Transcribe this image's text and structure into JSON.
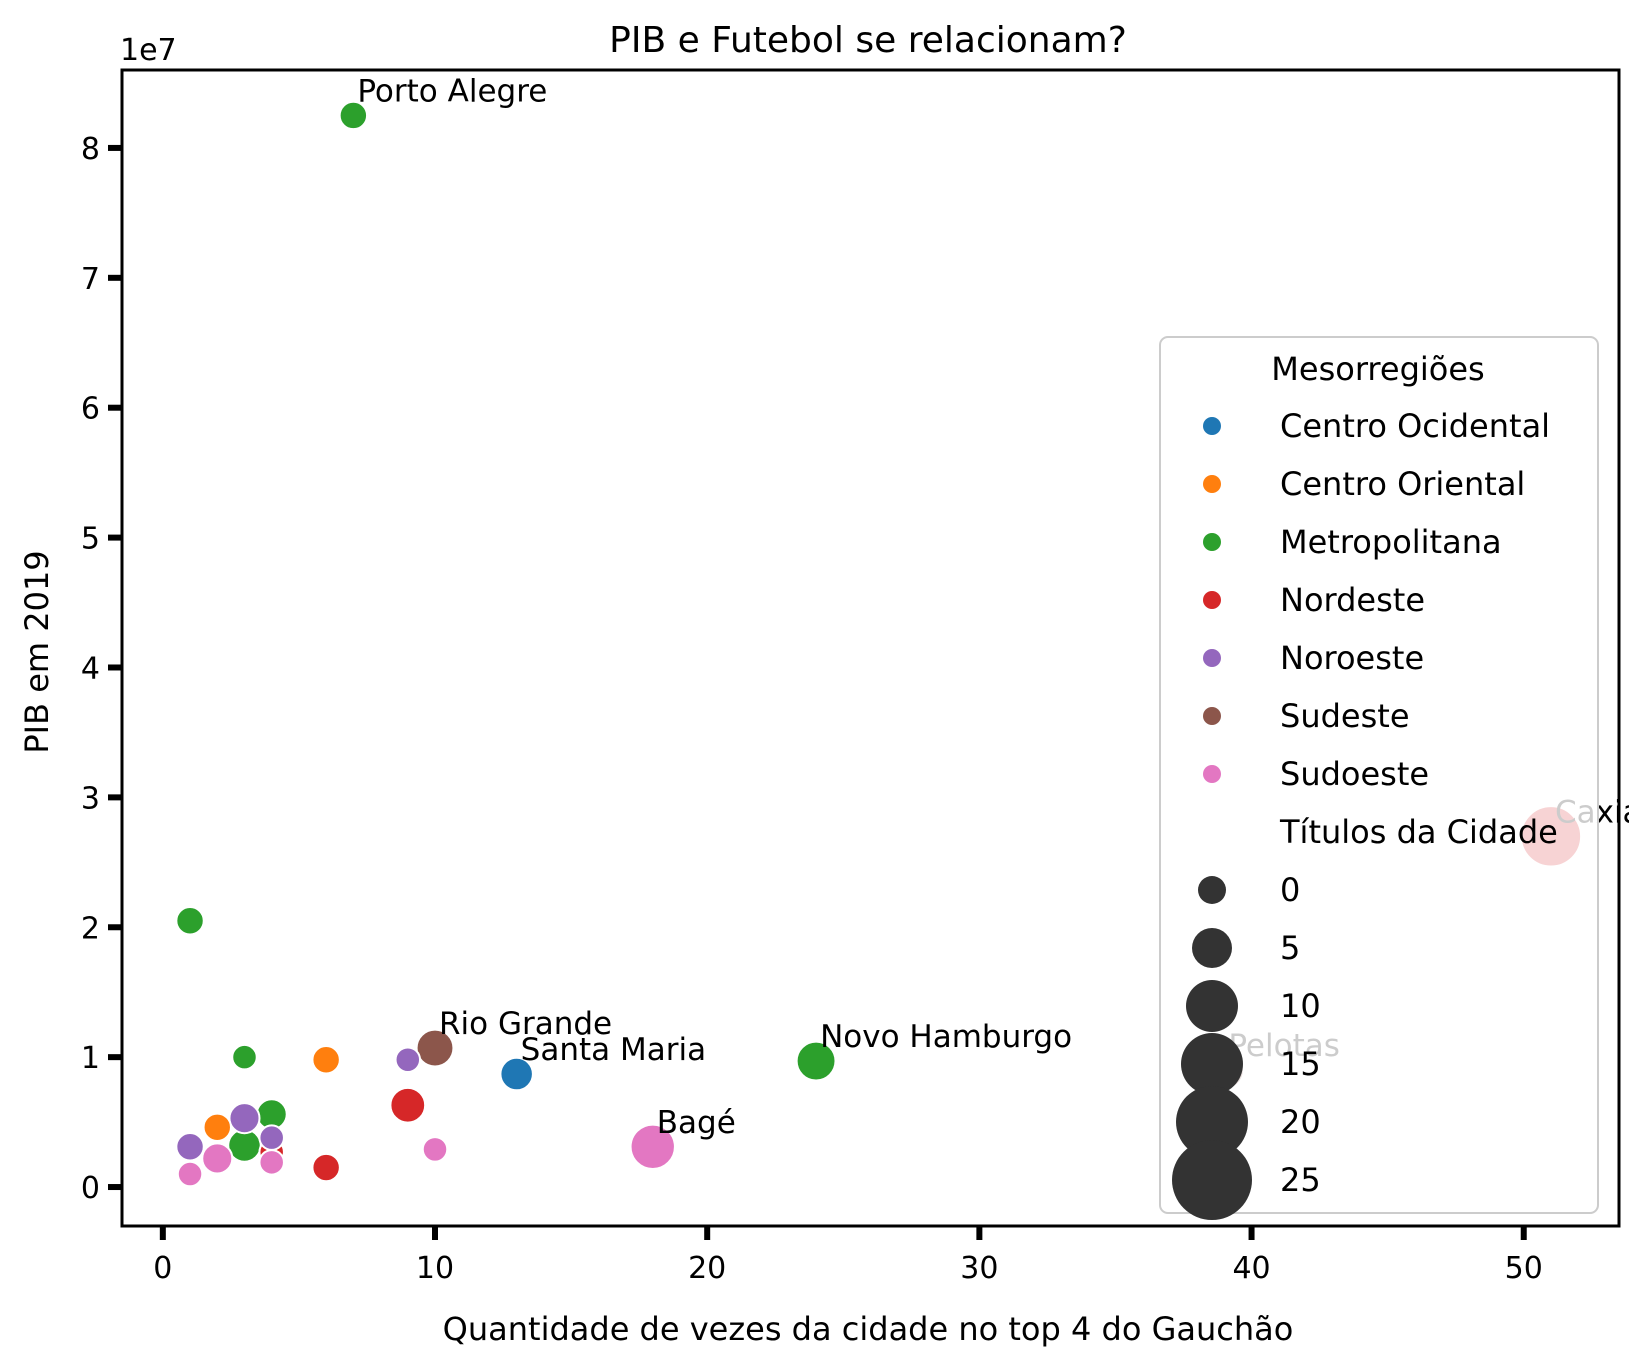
{
  "chart_data": {
    "type": "scatter",
    "title": "PIB e Futebol se relacionam?",
    "xlabel": "Quantidade de vezes da cidade no top 4 do Gauchão",
    "ylabel": "PIB em 2019",
    "y_offset_text": "1e7",
    "xlim": [
      -1.5,
      53.5
    ],
    "ylim": [
      -0.3,
      8.6
    ],
    "x_ticks": [
      "0",
      "10",
      "20",
      "30",
      "40",
      "50"
    ],
    "y_ticks": [
      "0",
      "1",
      "2",
      "3",
      "4",
      "5",
      "6",
      "7",
      "8"
    ],
    "grid": false,
    "legend": {
      "position": "right",
      "hue_title": "Mesorregiões",
      "size_title": "Títulos da Cidade",
      "hue_entries": [
        {
          "label": "Centro Ocidental",
          "color": "#1f77b4"
        },
        {
          "label": "Centro Oriental",
          "color": "#ff7f0e"
        },
        {
          "label": "Metropolitana",
          "color": "#2ca02c"
        },
        {
          "label": "Nordeste",
          "color": "#d62728"
        },
        {
          "label": "Noroeste",
          "color": "#9467bd"
        },
        {
          "label": "Sudeste",
          "color": "#8c564b"
        },
        {
          "label": "Sudoeste",
          "color": "#e377c2"
        }
      ],
      "size_entries": [
        "0",
        "5",
        "10",
        "15",
        "20",
        "25"
      ]
    },
    "points": [
      {
        "x": 7,
        "y": 8.25,
        "region": "Metropolitana",
        "titles": 1,
        "label": "Porto Alegre"
      },
      {
        "x": 1,
        "y": 2.05,
        "region": "Metropolitana",
        "titles": 1
      },
      {
        "x": 3,
        "y": 1.0,
        "region": "Metropolitana",
        "titles": 0
      },
      {
        "x": 4,
        "y": 0.56,
        "region": "Metropolitana",
        "titles": 2
      },
      {
        "x": 3,
        "y": 0.32,
        "region": "Metropolitana",
        "titles": 3
      },
      {
        "x": 24,
        "y": 0.97,
        "region": "Metropolitana",
        "titles": 6,
        "label": "Novo Hamburgo"
      },
      {
        "x": 6,
        "y": 0.98,
        "region": "Centro Oriental",
        "titles": 1
      },
      {
        "x": 2,
        "y": 0.46,
        "region": "Centro Oriental",
        "titles": 1
      },
      {
        "x": 9,
        "y": 0.63,
        "region": "Nordeste",
        "titles": 4
      },
      {
        "x": 6,
        "y": 0.15,
        "region": "Nordeste",
        "titles": 1
      },
      {
        "x": 4,
        "y": 0.27,
        "region": "Nordeste",
        "titles": 0
      },
      {
        "x": 51,
        "y": 2.7,
        "region": "Nordeste",
        "titles": 20,
        "label": "Caxias do Sul"
      },
      {
        "x": 9,
        "y": 0.98,
        "region": "Noroeste",
        "titles": 0
      },
      {
        "x": 3,
        "y": 0.53,
        "region": "Noroeste",
        "titles": 2
      },
      {
        "x": 1,
        "y": 0.31,
        "region": "Noroeste",
        "titles": 1
      },
      {
        "x": 4,
        "y": 0.38,
        "region": "Noroeste",
        "titles": 0
      },
      {
        "x": 10,
        "y": 1.07,
        "region": "Sudeste",
        "titles": 5,
        "label": "Rio Grande"
      },
      {
        "x": 39,
        "y": 0.9,
        "region": "Sudeste",
        "titles": 6,
        "label": "Pelotas"
      },
      {
        "x": 13,
        "y": 0.87,
        "region": "Centro Ocidental",
        "titles": 3,
        "label": "Santa Maria"
      },
      {
        "x": 18,
        "y": 0.31,
        "region": "Sudoeste",
        "titles": 9,
        "label": "Bagé"
      },
      {
        "x": 10,
        "y": 0.29,
        "region": "Sudoeste",
        "titles": 0
      },
      {
        "x": 2,
        "y": 0.22,
        "region": "Sudoeste",
        "titles": 2
      },
      {
        "x": 4,
        "y": 0.19,
        "region": "Sudoeste",
        "titles": 0
      },
      {
        "x": 1,
        "y": 0.1,
        "region": "Sudoeste",
        "titles": 0
      }
    ]
  }
}
